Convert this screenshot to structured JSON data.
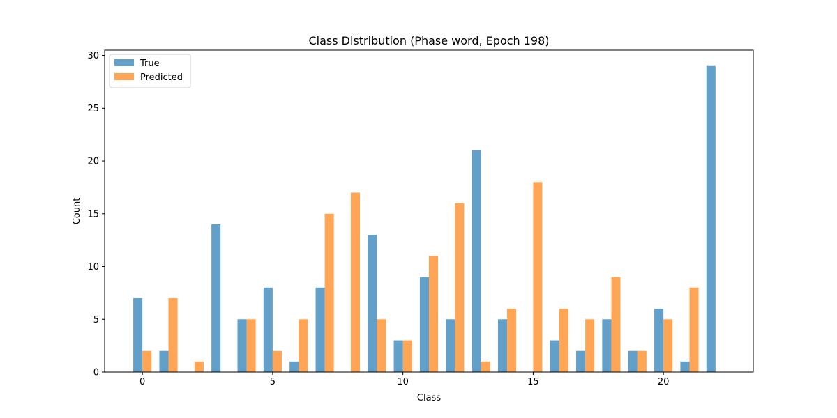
{
  "chart_data": {
    "type": "bar",
    "title": "Class Distribution (Phase word, Epoch 198)",
    "xlabel": "Class",
    "ylabel": "Count",
    "x": [
      0,
      1,
      2,
      3,
      4,
      5,
      6,
      7,
      8,
      9,
      10,
      11,
      12,
      13,
      14,
      15,
      16,
      17,
      18,
      19,
      20,
      21,
      22
    ],
    "xlim": [
      -1.45,
      23.45
    ],
    "ylim": [
      0,
      30.5
    ],
    "xticks": [
      0,
      5,
      10,
      15,
      20
    ],
    "yticks": [
      0,
      5,
      10,
      15,
      20,
      25,
      30
    ],
    "legend_position": "top-left",
    "series": [
      {
        "name": "True",
        "color": "#1f77b4",
        "values": [
          7,
          2,
          0,
          14,
          5,
          8,
          1,
          8,
          0,
          13,
          3,
          9,
          5,
          21,
          5,
          0,
          3,
          2,
          5,
          2,
          6,
          1,
          29
        ]
      },
      {
        "name": "Predicted",
        "color": "#ff7f0e",
        "values": [
          2,
          7,
          1,
          0,
          5,
          2,
          5,
          15,
          17,
          5,
          3,
          11,
          16,
          1,
          6,
          18,
          6,
          5,
          9,
          2,
          5,
          8,
          0
        ]
      }
    ]
  }
}
